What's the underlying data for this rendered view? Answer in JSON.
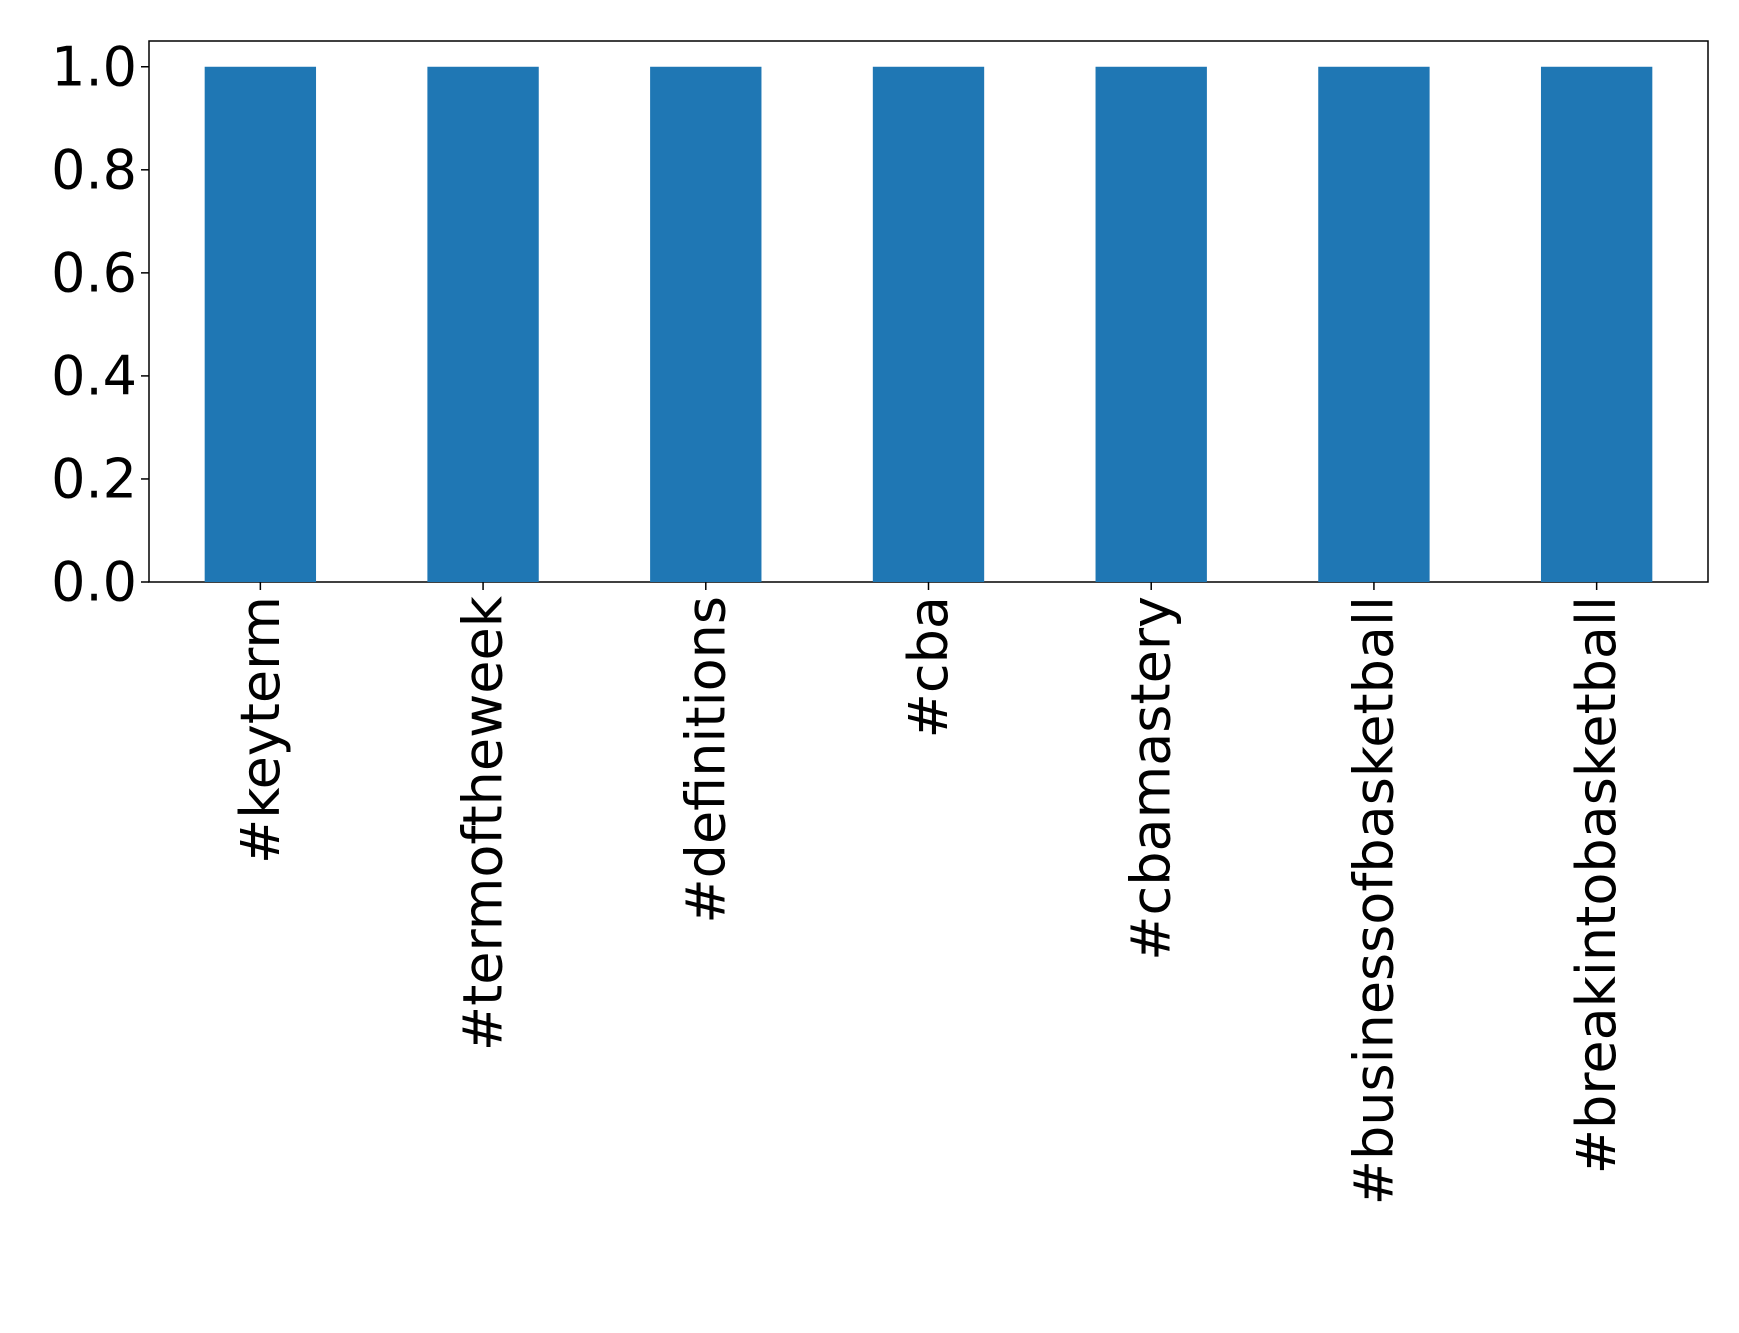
{
  "chart_data": {
    "type": "bar",
    "categories": [
      "#keyterm",
      "#termoftheweek",
      "#definitions",
      "#cba",
      "#cbamastery",
      "#businessofbasketball",
      "#breakintobasketball"
    ],
    "values": [
      1,
      1,
      1,
      1,
      1,
      1,
      1
    ],
    "color": "#1f77b4",
    "ylim": [
      0,
      1.05
    ],
    "yticks": [
      {
        "value": 0,
        "label": "0.0"
      },
      {
        "value": 0.2,
        "label": "0.2"
      },
      {
        "value": 0.4,
        "label": "0.4"
      },
      {
        "value": 0.6,
        "label": "0.6"
      },
      {
        "value": 0.8,
        "label": "0.8"
      },
      {
        "value": 1,
        "label": "1.0"
      }
    ],
    "grid": false
  }
}
